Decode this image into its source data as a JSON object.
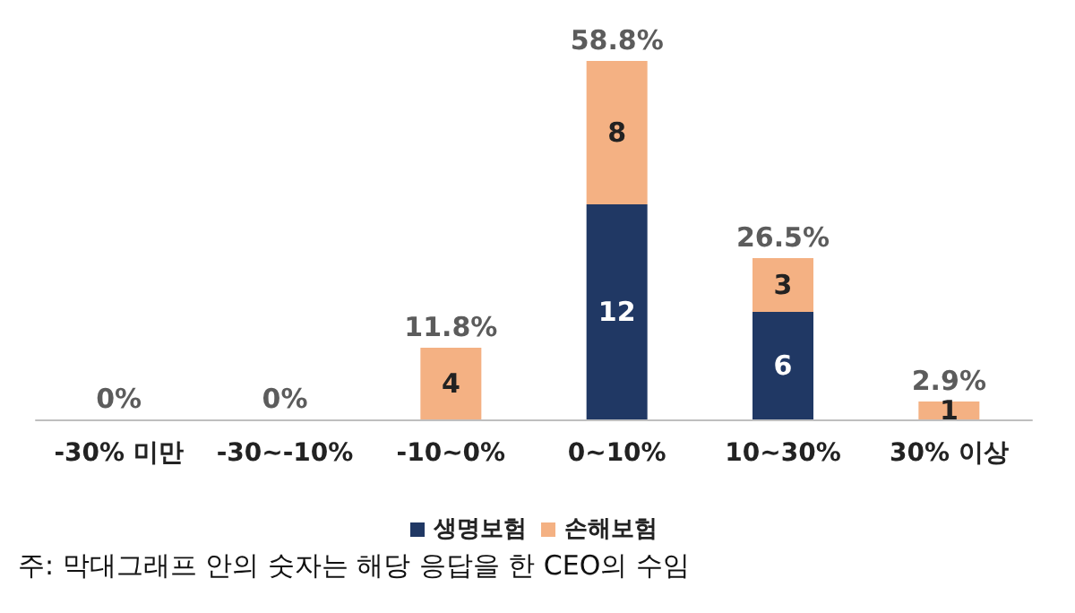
{
  "chart_data": {
    "type": "bar",
    "stacked": true,
    "categories": [
      "-30% 미만",
      "-30~-10%",
      "-10~0%",
      "0~10%",
      "10~30%",
      "30% 이상"
    ],
    "series": [
      {
        "name": "생명보험",
        "color": "#203864",
        "values": [
          0,
          0,
          0,
          12,
          6,
          0
        ],
        "value_labels": [
          null,
          null,
          null,
          "12",
          "6",
          null
        ]
      },
      {
        "name": "손해보험",
        "color": "#f4b183",
        "values": [
          0,
          0,
          4,
          8,
          3,
          1
        ],
        "value_labels": [
          null,
          null,
          "4",
          "8",
          "3",
          "1"
        ]
      }
    ],
    "legend": "bottom",
    "annotations": [
      {
        "text": "0%",
        "x": "-30% 미만",
        "y": 0
      },
      {
        "text": "0%",
        "x": "-30~-10%",
        "y": 0
      },
      {
        "text": "11.8%",
        "x": "-10~0%",
        "y": 4
      },
      {
        "text": "58.8%",
        "x": "0~10%",
        "y": 20
      },
      {
        "text": "26.5%",
        "x": "10~30%",
        "y": 9
      },
      {
        "text": "2.9%",
        "x": "30% 이상",
        "y": 1
      },
      "주: 막대그래프 안의 숫자는 해당 응답을 한 CEO의 수임"
    ]
  }
}
